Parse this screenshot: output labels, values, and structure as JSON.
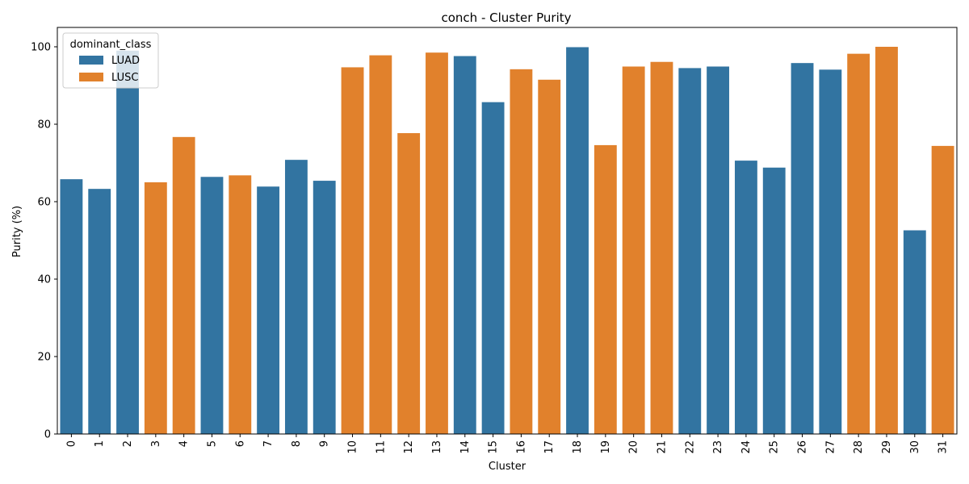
{
  "chart_data": {
    "type": "bar",
    "title": "conch - Cluster Purity",
    "xlabel": "Cluster",
    "ylabel": "Purity (%)",
    "ylim": [
      0,
      105
    ],
    "yticks": [
      0,
      20,
      40,
      60,
      80,
      100
    ],
    "grid": false,
    "categories": [
      "0",
      "1",
      "2",
      "3",
      "4",
      "5",
      "6",
      "7",
      "8",
      "9",
      "10",
      "11",
      "12",
      "13",
      "14",
      "15",
      "16",
      "17",
      "18",
      "19",
      "20",
      "21",
      "22",
      "23",
      "24",
      "25",
      "26",
      "27",
      "28",
      "29",
      "30",
      "31"
    ],
    "values": [
      65.8,
      63.3,
      99.0,
      65.0,
      76.7,
      66.4,
      66.8,
      63.9,
      70.8,
      65.4,
      94.7,
      97.8,
      77.7,
      98.5,
      97.6,
      85.7,
      94.2,
      91.5,
      99.9,
      74.6,
      94.9,
      96.1,
      94.5,
      94.9,
      70.6,
      68.8,
      95.8,
      94.1,
      98.2,
      100.0,
      52.6,
      74.4
    ],
    "dominant_class": [
      "LUAD",
      "LUAD",
      "LUAD",
      "LUSC",
      "LUSC",
      "LUAD",
      "LUSC",
      "LUAD",
      "LUAD",
      "LUAD",
      "LUSC",
      "LUSC",
      "LUSC",
      "LUSC",
      "LUAD",
      "LUAD",
      "LUSC",
      "LUSC",
      "LUAD",
      "LUSC",
      "LUSC",
      "LUSC",
      "LUAD",
      "LUAD",
      "LUAD",
      "LUAD",
      "LUAD",
      "LUAD",
      "LUSC",
      "LUSC",
      "LUAD",
      "LUSC"
    ],
    "legend": {
      "title": "dominant_class",
      "placement": "top-left",
      "entries": [
        {
          "name": "LUAD",
          "color": "#3274a1"
        },
        {
          "name": "LUSC",
          "color": "#e1812c"
        }
      ]
    }
  }
}
